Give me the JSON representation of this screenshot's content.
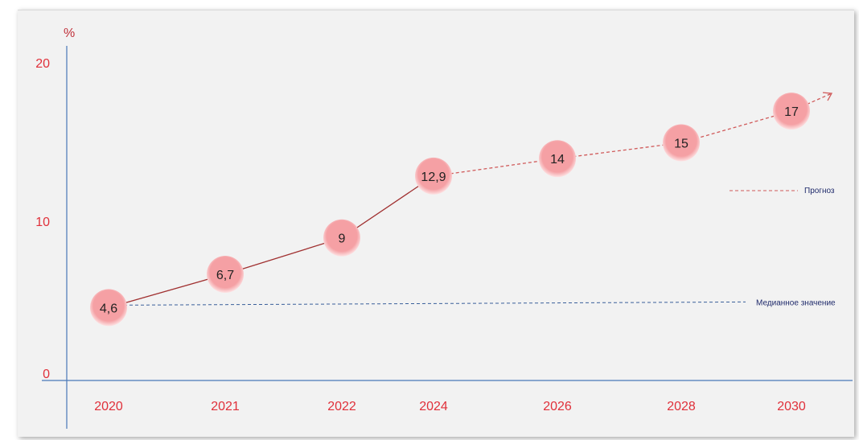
{
  "colors": {
    "axis": "#4a78b8",
    "tick_text": "#e0303a",
    "actual_line": "#a03030",
    "forecast_line": "#d05a5a",
    "median_line": "#3a5f9a",
    "bubble": "#f5a0a4",
    "bubble_edge": "#fde3e4",
    "legend_text": "#1f2a6b"
  },
  "chart_data": {
    "type": "line",
    "y_unit_label": "%",
    "ylim": [
      0,
      20
    ],
    "y_ticks": [
      {
        "value": 0,
        "label": "0"
      },
      {
        "value": 10,
        "label": "10"
      },
      {
        "value": 20,
        "label": "20"
      }
    ],
    "categories": [
      "2020",
      "2021",
      "2022",
      "2024",
      "2026",
      "2028",
      "2030"
    ],
    "series": [
      {
        "name": "",
        "style": "solid",
        "points": [
          {
            "x": "2020",
            "y": 4.6,
            "label": "4,6"
          },
          {
            "x": "2021",
            "y": 6.7,
            "label": "6,7"
          },
          {
            "x": "2022",
            "y": 9,
            "label": "9"
          },
          {
            "x": "2024",
            "y": 12.9,
            "label": "12,9"
          }
        ]
      },
      {
        "name": "Прогноз",
        "style": "dashed",
        "points": [
          {
            "x": "2024",
            "y": 12.9,
            "label": ""
          },
          {
            "x": "2026",
            "y": 14,
            "label": "14"
          },
          {
            "x": "2028",
            "y": 15,
            "label": "15"
          },
          {
            "x": "2030",
            "y": 17,
            "label": "17"
          }
        ]
      }
    ],
    "reference_lines": [
      {
        "name": "Медианное значение",
        "y": 4.6,
        "style": "dashed"
      }
    ],
    "grid": false,
    "legend_placement": "right"
  }
}
